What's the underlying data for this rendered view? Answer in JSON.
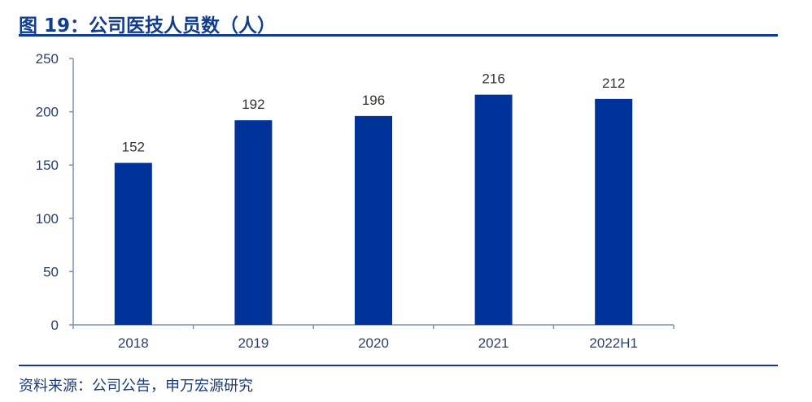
{
  "title": "图 19：公司医技人员数（人）",
  "source": "资料来源：公司公告，申万宏源研究",
  "colors": {
    "bar": "#003399",
    "accent": "#0f3a96"
  },
  "chart_data": {
    "type": "bar",
    "title": "图 19：公司医技人员数（人）",
    "xlabel": "",
    "ylabel": "",
    "categories": [
      "2018",
      "2019",
      "2020",
      "2021",
      "2022H1"
    ],
    "values": [
      152,
      192,
      196,
      216,
      212
    ],
    "ylim": [
      0,
      250
    ],
    "yticks": [
      0,
      50,
      100,
      150,
      200,
      250
    ],
    "grid": false,
    "legend": "none"
  }
}
